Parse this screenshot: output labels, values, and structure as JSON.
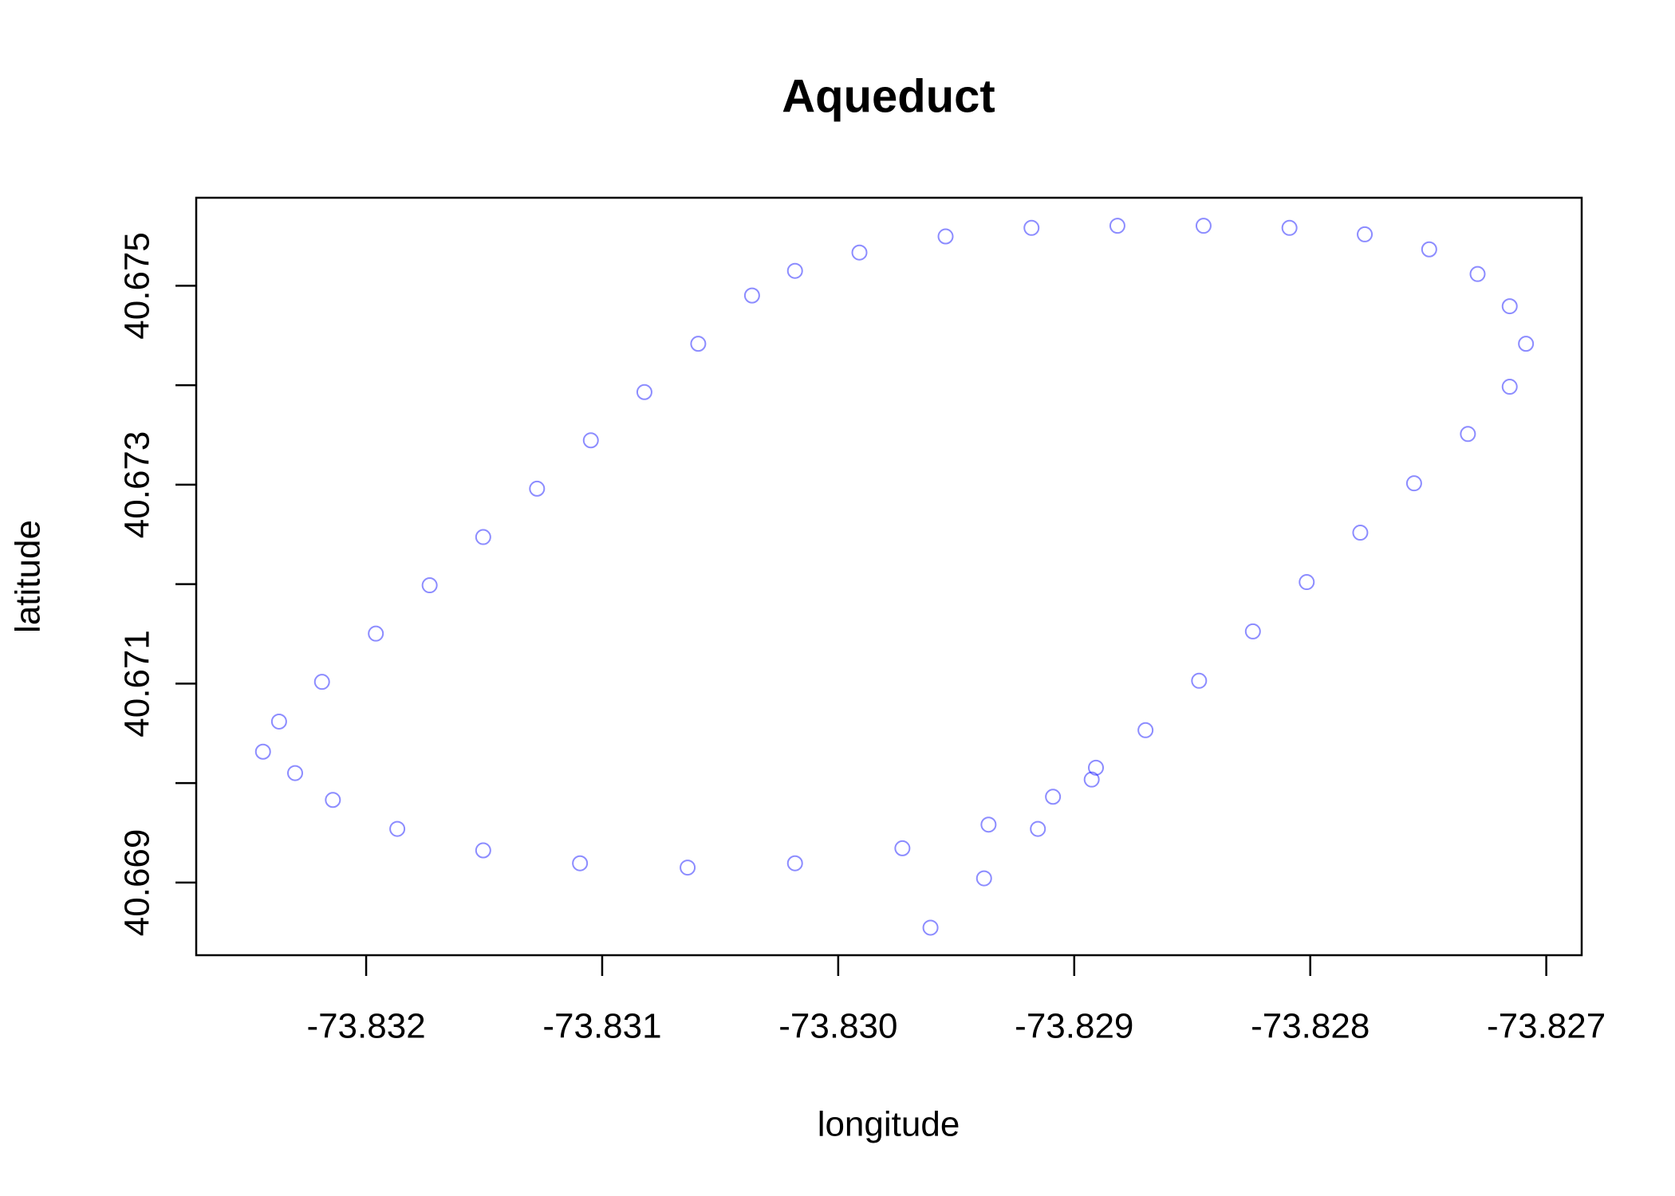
{
  "chart_data": {
    "type": "scatter",
    "title": "Aqueduct",
    "x_label": "longitude",
    "y_label": "latitude",
    "color": "#0000ff",
    "xlim": [
      -73.83272,
      -73.82685
    ],
    "ylim": [
      40.66827,
      40.675885
    ],
    "xticks": [
      {
        "value": -73.832,
        "label": "-73.832"
      },
      {
        "value": -73.831,
        "label": "-73.831"
      },
      {
        "value": -73.83,
        "label": "-73.830"
      },
      {
        "value": -73.829,
        "label": "-73.829"
      },
      {
        "value": -73.828,
        "label": "-73.828"
      },
      {
        "value": -73.827,
        "label": "-73.827"
      }
    ],
    "yticks": [
      40.669,
      40.671,
      40.673,
      40.675
    ],
    "yticks_unlabeled": [
      40.67,
      40.672,
      40.674
    ],
    "x": [
      -73.829609,
      -73.829382,
      -73.829154,
      -73.828926,
      -73.828698,
      -73.828471,
      -73.828243,
      -73.828015,
      -73.827788,
      -73.82756,
      -73.827332,
      -73.827155,
      -73.827086,
      -73.827155,
      -73.827291,
      -73.827496,
      -73.827769,
      -73.828088,
      -73.828452,
      -73.828817,
      -73.829181,
      -73.829545,
      -73.82991,
      -73.830183,
      -73.830365,
      -73.830593,
      -73.830821,
      -73.831048,
      -73.831276,
      -73.831504,
      -73.831731,
      -73.831959,
      -73.832187,
      -73.832369,
      -73.832437,
      -73.832301,
      -73.832141,
      -73.831868,
      -73.831504,
      -73.831094,
      -73.830638,
      -73.830183,
      -73.829728,
      -73.829363,
      -73.82909,
      -73.828908
    ],
    "y": [
      40.668547,
      40.669043,
      40.66954,
      40.670036,
      40.670532,
      40.671029,
      40.671525,
      40.672021,
      40.672518,
      40.673014,
      40.67351,
      40.673985,
      40.674417,
      40.674794,
      40.675118,
      40.675366,
      40.675517,
      40.675582,
      40.675603,
      40.675603,
      40.675582,
      40.675496,
      40.675334,
      40.67515,
      40.674902,
      40.674417,
      40.673931,
      40.673446,
      40.67296,
      40.672474,
      40.671989,
      40.671503,
      40.671018,
      40.670619,
      40.670316,
      40.670101,
      40.669831,
      40.66954,
      40.669324,
      40.669194,
      40.669151,
      40.669194,
      40.669345,
      40.669583,
      40.669863,
      40.670155
    ]
  }
}
